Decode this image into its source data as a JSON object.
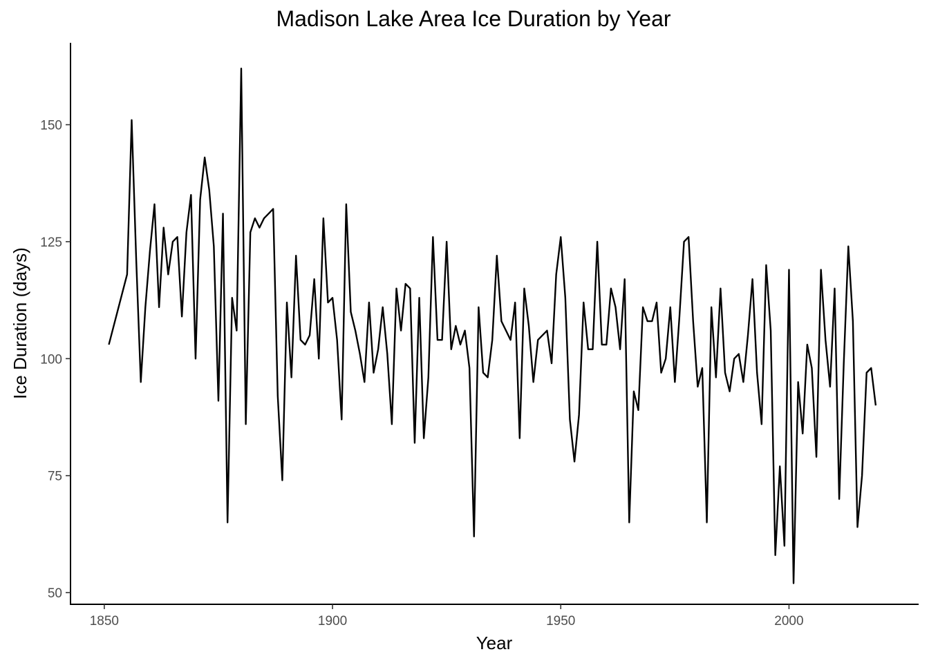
{
  "chart_data": {
    "type": "line",
    "title": "Madison Lake Area Ice Duration by Year",
    "xlabel": "Year",
    "ylabel": "Ice Duration (days)",
    "xlim": [
      1842.6,
      2028.4
    ],
    "ylim": [
      47.5,
      167.5
    ],
    "x_ticks": [
      1850,
      1900,
      1950,
      2000
    ],
    "y_ticks": [
      50,
      75,
      100,
      125,
      150
    ],
    "grid": false,
    "legend": "none",
    "series": [
      {
        "color": "#000000",
        "x": [
          1851,
          1852,
          1853,
          1854,
          1855,
          1856,
          1857,
          1858,
          1859,
          1860,
          1861,
          1862,
          1863,
          1864,
          1865,
          1866,
          1867,
          1868,
          1869,
          1870,
          1871,
          1872,
          1873,
          1874,
          1875,
          1876,
          1877,
          1878,
          1879,
          1880,
          1881,
          1882,
          1883,
          1884,
          1885,
          1886,
          1887,
          1888,
          1889,
          1890,
          1891,
          1892,
          1893,
          1894,
          1895,
          1896,
          1897,
          1898,
          1899,
          1900,
          1901,
          1902,
          1903,
          1904,
          1905,
          1906,
          1907,
          1908,
          1909,
          1910,
          1911,
          1912,
          1913,
          1914,
          1915,
          1916,
          1917,
          1918,
          1919,
          1920,
          1921,
          1922,
          1923,
          1924,
          1925,
          1926,
          1927,
          1928,
          1929,
          1930,
          1931,
          1932,
          1933,
          1934,
          1935,
          1936,
          1937,
          1938,
          1939,
          1940,
          1941,
          1942,
          1943,
          1944,
          1945,
          1946,
          1947,
          1948,
          1949,
          1950,
          1951,
          1952,
          1953,
          1954,
          1955,
          1956,
          1957,
          1958,
          1959,
          1960,
          1961,
          1962,
          1963,
          1964,
          1965,
          1966,
          1967,
          1968,
          1969,
          1970,
          1971,
          1972,
          1973,
          1974,
          1975,
          1976,
          1977,
          1978,
          1979,
          1980,
          1981,
          1982,
          1983,
          1984,
          1985,
          1986,
          1987,
          1988,
          1989,
          1990,
          1991,
          1992,
          1993,
          1994,
          1995,
          1996,
          1997,
          1998,
          1999,
          2000,
          2001,
          2002,
          2003,
          2004,
          2005,
          2006,
          2007,
          2008,
          2009,
          2010,
          2011,
          2012,
          2013,
          2014,
          2015,
          2016,
          2017,
          2018,
          2019
        ],
        "y": [
          103,
          null,
          null,
          null,
          118,
          151,
          121,
          95,
          111,
          123,
          133,
          111,
          128,
          118,
          125,
          126,
          109,
          127,
          135,
          100,
          134,
          143,
          136,
          124,
          91,
          131,
          65,
          113,
          106,
          162,
          86,
          127,
          130,
          128,
          130,
          131,
          132,
          92,
          74,
          112,
          96,
          122,
          104,
          103,
          105,
          117,
          100,
          130,
          112,
          113,
          104,
          87,
          133,
          110,
          106,
          101,
          95,
          112,
          97,
          102,
          111,
          101,
          86,
          115,
          106,
          116,
          115,
          82,
          113,
          83,
          96,
          126,
          104,
          104,
          125,
          102,
          107,
          103,
          106,
          98,
          62,
          111,
          97,
          96,
          104,
          122,
          108,
          106,
          104,
          112,
          83,
          115,
          107,
          95,
          104,
          105,
          106,
          99,
          118,
          126,
          113,
          87,
          78,
          88,
          112,
          102,
          102,
          125,
          103,
          103,
          115,
          111,
          102,
          117,
          65,
          93,
          89,
          111,
          108,
          108,
          112,
          97,
          100,
          111,
          95,
          109,
          125,
          126,
          108,
          94,
          98,
          65,
          111,
          96,
          115,
          97,
          93,
          100,
          101,
          95,
          105,
          117,
          97,
          86,
          120,
          106,
          58,
          77,
          60,
          119,
          52,
          95,
          84,
          103,
          98,
          79,
          119,
          104,
          94,
          115,
          70,
          99,
          124,
          108,
          64,
          75,
          97,
          98,
          90
        ]
      }
    ]
  }
}
